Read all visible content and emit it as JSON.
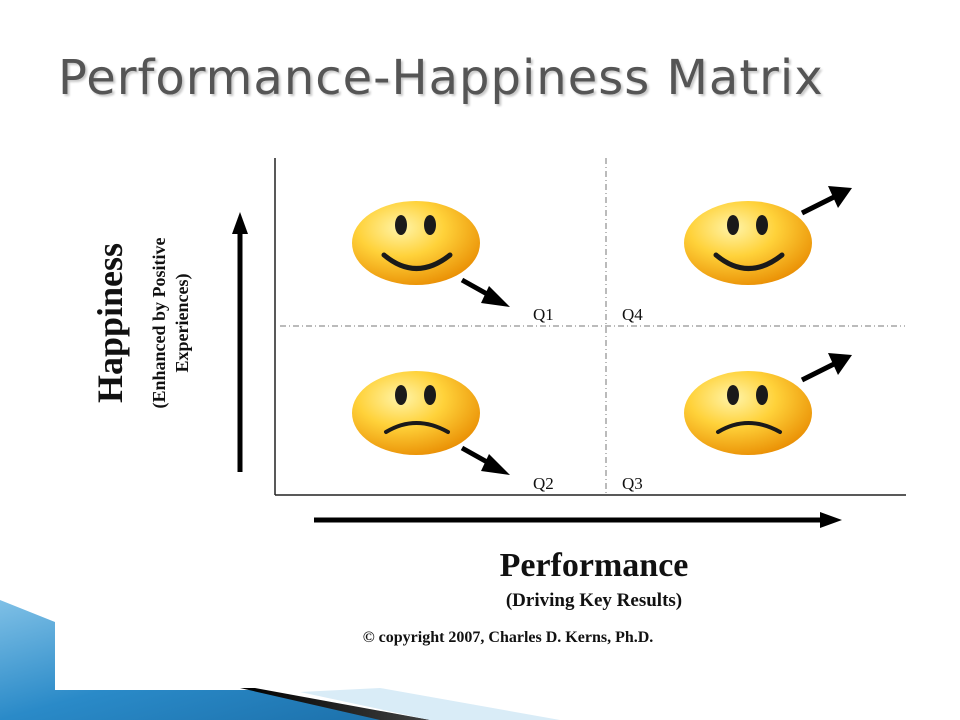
{
  "slide": {
    "title": "Performance-Happiness Matrix"
  },
  "matrix": {
    "y_axis": {
      "label": "Happiness",
      "sublabel_line1": "(Enhanced by Positive",
      "sublabel_line2": "Experiences)"
    },
    "x_axis": {
      "label": "Performance",
      "sublabel": "(Driving Key Results)"
    },
    "quadrants": [
      {
        "id": "Q1",
        "face": "happy",
        "arrow": "down-right"
      },
      {
        "id": "Q4",
        "face": "happy",
        "arrow": "up-right"
      },
      {
        "id": "Q2",
        "face": "sad",
        "arrow": "down-right"
      },
      {
        "id": "Q3",
        "face": "sad",
        "arrow": "up-right"
      }
    ],
    "copyright": "© copyright 2007, Charles D. Kerns, Ph.D."
  },
  "colors": {
    "title": "#555555",
    "face_light": "#ffe36a",
    "face_dark": "#e88a00",
    "accent_blue": "#2a7bbd"
  }
}
